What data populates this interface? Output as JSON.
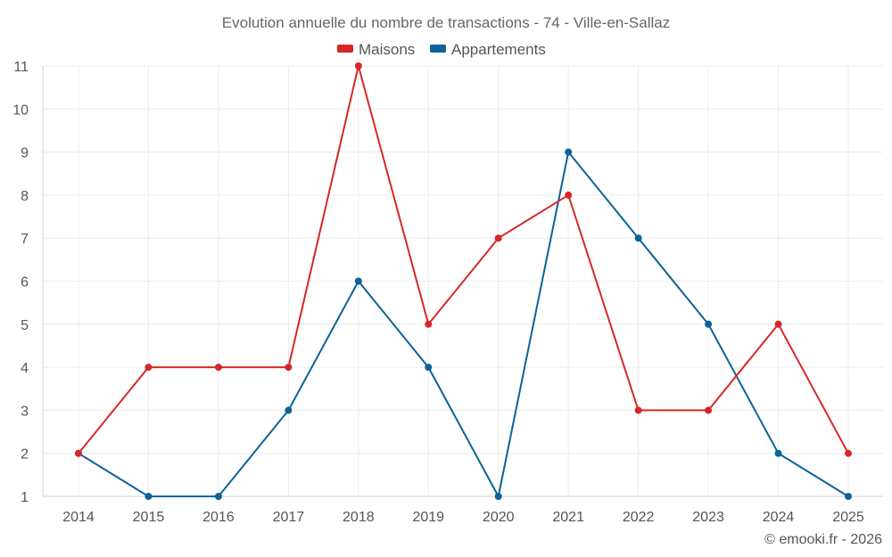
{
  "chart_data": {
    "type": "line",
    "title": "Evolution annuelle du nombre de transactions - 74 - Ville-en-Sallaz",
    "categories": [
      "2014",
      "2015",
      "2016",
      "2017",
      "2018",
      "2019",
      "2020",
      "2021",
      "2022",
      "2023",
      "2024",
      "2025"
    ],
    "series": [
      {
        "name": "Maisons",
        "color": "#d62728",
        "values": [
          2,
          4,
          4,
          4,
          11,
          5,
          7,
          8,
          3,
          3,
          5,
          2
        ]
      },
      {
        "name": "Appartements",
        "color": "#0b6399",
        "values": [
          2,
          1,
          1,
          3,
          6,
          4,
          1,
          9,
          7,
          5,
          2,
          1
        ]
      }
    ],
    "yticks": [
      "1",
      "2",
      "3",
      "4",
      "5",
      "6",
      "7",
      "8",
      "9",
      "10",
      "11"
    ],
    "ylim": [
      1,
      11
    ],
    "grid": true,
    "legend_position": "top-center"
  },
  "credit": "© emooki.fr - 2026"
}
